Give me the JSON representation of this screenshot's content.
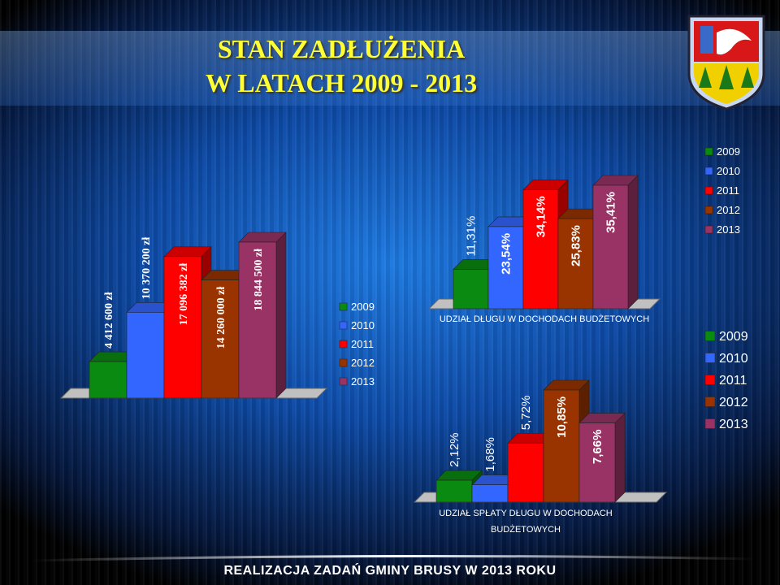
{
  "slide": {
    "title": [
      "STAN ZADŁUŻENIA",
      "W LATACH 2009 - 2013"
    ],
    "footer": "REALIZACJA ZADAŃ GMINY BRUSY W 2013 ROKU"
  },
  "chart_data": [
    {
      "type": "bar3d",
      "series": [
        {
          "name": "2009",
          "color": "#0b8a12",
          "values": [
            4412600
          ],
          "value_labels": [
            "4 412 600 zł"
          ]
        },
        {
          "name": "2010",
          "color": "#3366ff",
          "values": [
            10370200
          ],
          "value_labels": [
            "10 370 200 zł"
          ]
        },
        {
          "name": "2011",
          "color": "#ff0000",
          "values": [
            17096382
          ],
          "value_labels": [
            "17 096 382 zł"
          ]
        },
        {
          "name": "2012",
          "color": "#993300",
          "values": [
            14260000
          ],
          "value_labels": [
            "14 260 000 zł"
          ]
        },
        {
          "name": "2013",
          "color": "#993366",
          "values": [
            18844500
          ],
          "value_labels": [
            "18 844 500 zł"
          ]
        }
      ]
    },
    {
      "type": "bar3d",
      "x_label": "UDZIAŁ DŁUGU W DOCHODACH BUDŻETOWYCH",
      "series": [
        {
          "name": "2009",
          "color": "#0b8a12",
          "values": [
            11.31
          ],
          "value_labels": [
            "11,31%"
          ]
        },
        {
          "name": "2010",
          "color": "#3366ff",
          "values": [
            23.54
          ],
          "value_labels": [
            "23,54%"
          ]
        },
        {
          "name": "2011",
          "color": "#ff0000",
          "values": [
            34.14
          ],
          "value_labels": [
            "34,14%"
          ]
        },
        {
          "name": "2012",
          "color": "#993300",
          "values": [
            25.83
          ],
          "value_labels": [
            "25,83%"
          ]
        },
        {
          "name": "2013",
          "color": "#993366",
          "values": [
            35.41
          ],
          "value_labels": [
            "35,41%"
          ]
        }
      ]
    },
    {
      "type": "bar3d",
      "x_label": "UDZIAŁ SPŁATY DŁUGU W DOCHODACH BUDŻETOWYCH",
      "series": [
        {
          "name": "2009",
          "color": "#0b8a12",
          "values": [
            2.12
          ],
          "value_labels": [
            "2,12%"
          ]
        },
        {
          "name": "2010",
          "color": "#3366ff",
          "values": [
            1.68
          ],
          "value_labels": [
            "1,68%"
          ]
        },
        {
          "name": "2011",
          "color": "#ff0000",
          "values": [
            5.72
          ],
          "value_labels": [
            "5,72%"
          ]
        },
        {
          "name": "2012",
          "color": "#993300",
          "values": [
            10.85
          ],
          "value_labels": [
            "10,85%"
          ]
        },
        {
          "name": "2013",
          "color": "#993366",
          "values": [
            7.66
          ],
          "value_labels": [
            "7,66%"
          ]
        }
      ]
    }
  ]
}
